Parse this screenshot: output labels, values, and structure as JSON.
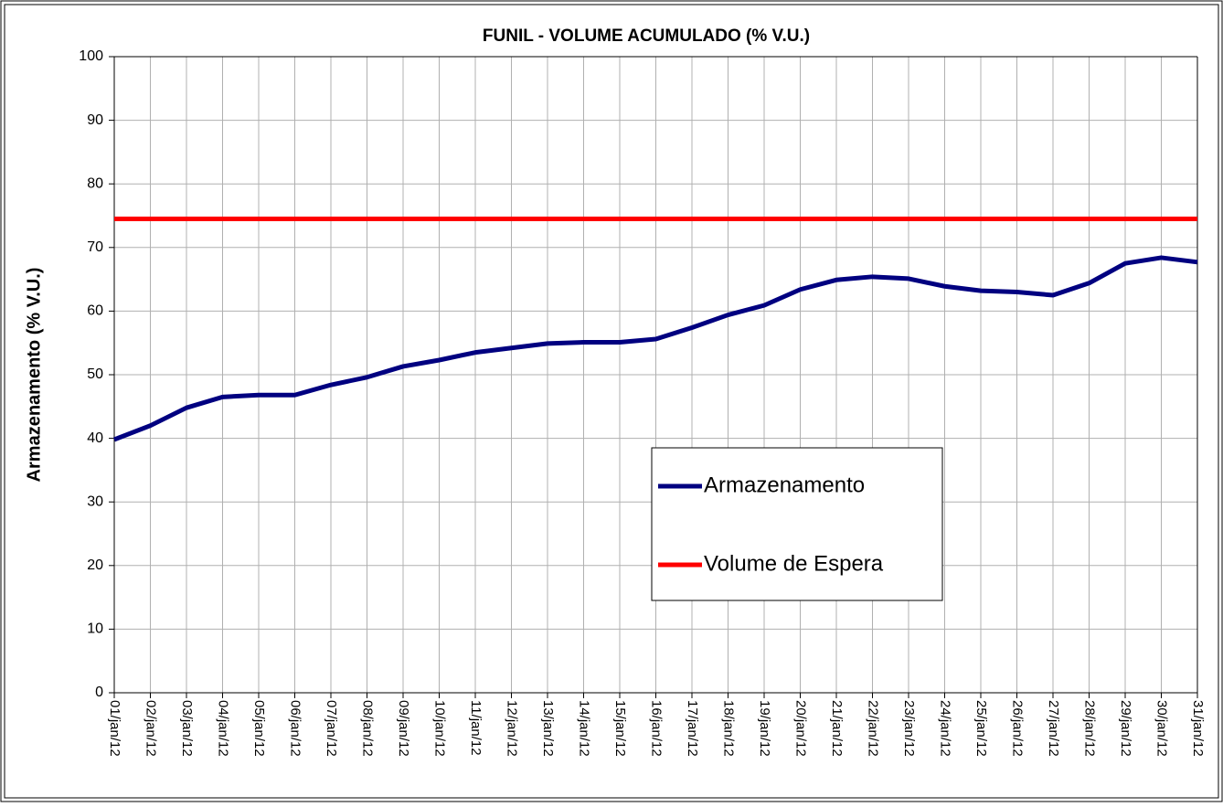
{
  "chart_data": {
    "type": "line",
    "title": "FUNIL - VOLUME ACUMULADO (% V.U.)",
    "y_label": "Armazenamento (% V.U.)",
    "categories": [
      "01/jan/12",
      "02/jan/12",
      "03/jan/12",
      "04/jan/12",
      "05/jan/12",
      "06/jan/12",
      "07/jan/12",
      "08/jan/12",
      "09/jan/12",
      "10/jan/12",
      "11/jan/12",
      "12/jan/12",
      "13/jan/12",
      "14/jan/12",
      "15/jan/12",
      "16/jan/12",
      "17/jan/12",
      "18/jan/12",
      "19/jan/12",
      "20/jan/12",
      "21/jan/12",
      "22/jan/12",
      "23/jan/12",
      "24/jan/12",
      "25/jan/12",
      "26/jan/12",
      "27/jan/12",
      "28/jan/12",
      "29/jan/12",
      "30/jan/12",
      "31/jan/12"
    ],
    "series": [
      {
        "name": "Armazenamento",
        "color": "#000080",
        "values": [
          39.8,
          42,
          44.8,
          46.5,
          46.8,
          46.8,
          48.4,
          49.6,
          51.3,
          52.3,
          53.5,
          54.2,
          54.9,
          55.1,
          55.1,
          55.6,
          57.4,
          59.4,
          60.9,
          63.4,
          64.9,
          65.4,
          65.1,
          63.9,
          63.2,
          63,
          62.5,
          64.4,
          67.5,
          68.4,
          67.7
        ]
      },
      {
        "name": "Volume de Espera",
        "color": "#ff0000",
        "values": [
          74.5,
          74.5,
          74.5,
          74.5,
          74.5,
          74.5,
          74.5,
          74.5,
          74.5,
          74.5,
          74.5,
          74.5,
          74.5,
          74.5,
          74.5,
          74.5,
          74.5,
          74.5,
          74.5,
          74.5,
          74.5,
          74.5,
          74.5,
          74.5,
          74.5,
          74.5,
          74.5,
          74.5,
          74.5,
          74.5,
          74.5
        ]
      }
    ],
    "ylim": [
      0,
      100
    ],
    "yticks": [
      0,
      10,
      20,
      30,
      40,
      50,
      60,
      70,
      80,
      90,
      100
    ],
    "grid": true
  }
}
